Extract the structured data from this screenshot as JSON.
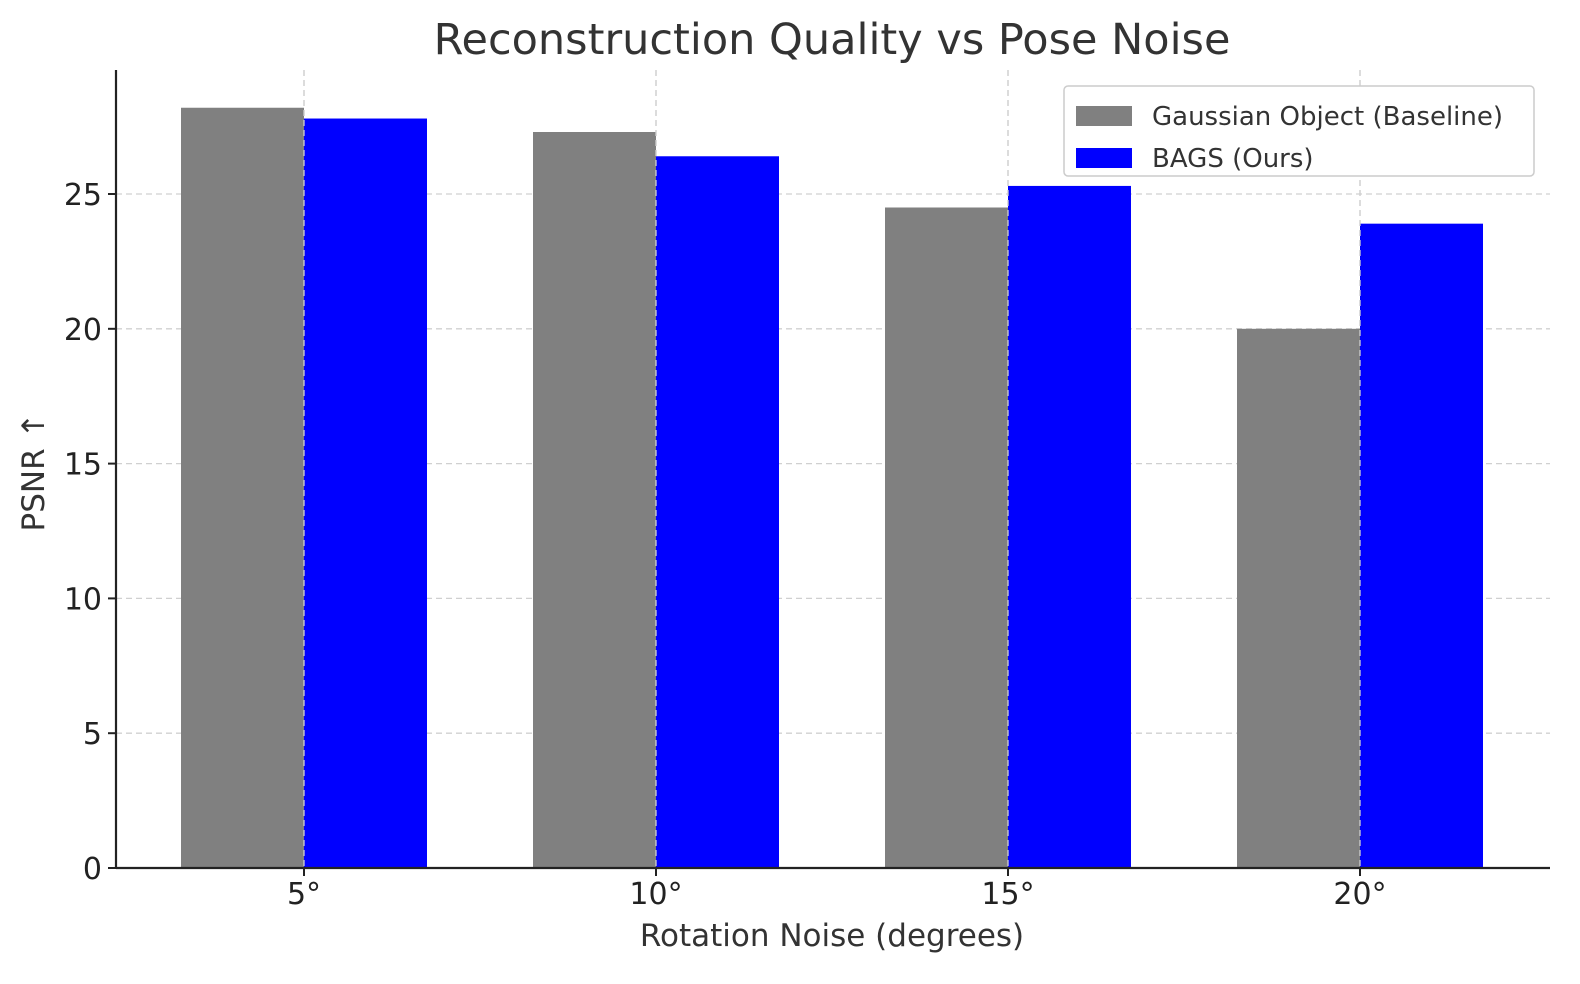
{
  "chart_data": {
    "type": "bar",
    "title": "Reconstruction Quality vs Pose Noise",
    "xlabel": "Rotation Noise (degrees)",
    "ylabel": "PSNR ↑",
    "categories": [
      "5°",
      "10°",
      "15°",
      "20°"
    ],
    "series": [
      {
        "name": "Gaussian Object (Baseline)",
        "values": [
          28.2,
          27.3,
          24.5,
          20.0
        ],
        "color": "#808080"
      },
      {
        "name": "BAGS (Ours)",
        "values": [
          27.8,
          26.4,
          25.3,
          23.9
        ],
        "color": "#0000ff"
      }
    ],
    "ylim": [
      0,
      29.6
    ],
    "yticks": [
      0,
      5,
      10,
      15,
      20,
      25
    ],
    "grid": true,
    "legend_position": "top-right"
  }
}
